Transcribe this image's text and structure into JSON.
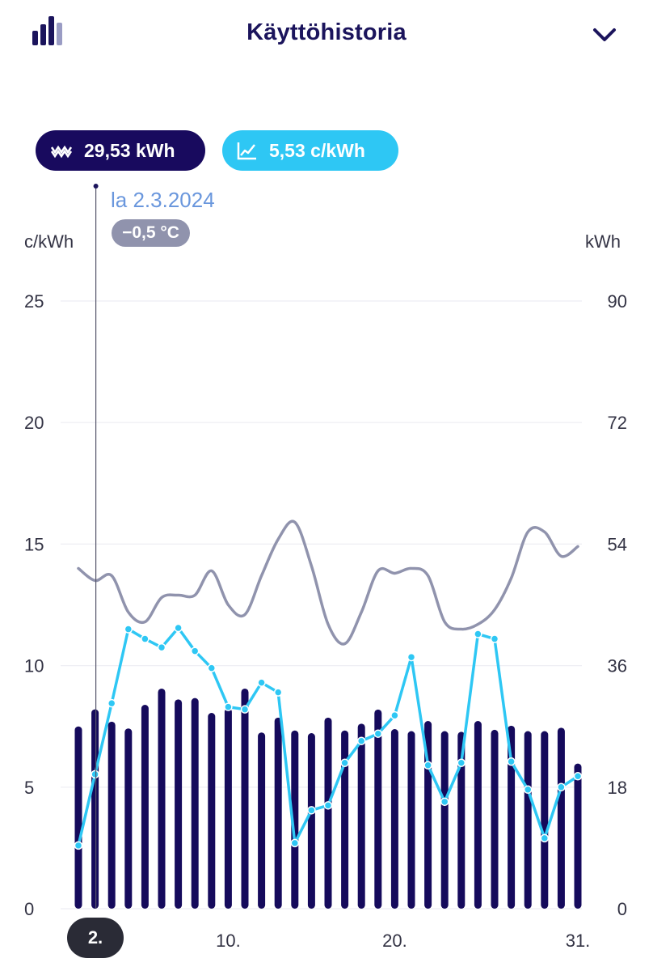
{
  "header": {
    "title": "Käyttöhistoria",
    "chart_icon": "bar-chart-icon",
    "menu_icon": "chevron-down-icon"
  },
  "legend": {
    "energy_value": "29,53 kWh",
    "energy_icon": "energy-waves-icon",
    "price_value": "5,53 c/kWh",
    "price_icon": "line-chart-icon"
  },
  "selection": {
    "date": "la 2.3.2024",
    "temperature": "−0,5 °C",
    "x_label": "2."
  },
  "colors": {
    "bar": "#150a5c",
    "price_line": "#2ec7f4",
    "temperature_line": "#9093ad",
    "grid": "#eeeef3"
  },
  "chart_data": {
    "type": "bar",
    "title": "",
    "x_ticks": [
      {
        "day": 10,
        "label": "10."
      },
      {
        "day": 20,
        "label": "20."
      },
      {
        "day": 31,
        "label": "31."
      }
    ],
    "left_axis": {
      "label": "c/kWh",
      "ylim": [
        0,
        25
      ],
      "ticks": [
        "0",
        "5",
        "10",
        "15",
        "20",
        "25"
      ]
    },
    "right_axis": {
      "label": "kWh",
      "ylim": [
        0,
        90
      ],
      "ticks": [
        "0",
        "18",
        "36",
        "54",
        "72",
        "90"
      ]
    },
    "grid": true,
    "days": [
      1,
      2,
      3,
      4,
      5,
      6,
      7,
      8,
      9,
      10,
      11,
      12,
      13,
      14,
      15,
      16,
      17,
      18,
      19,
      20,
      21,
      22,
      23,
      24,
      25,
      26,
      27,
      28,
      29,
      30,
      31
    ],
    "series": [
      {
        "kind": "bar",
        "axis": "right",
        "values": [
          27,
          29.53,
          27.7,
          26.7,
          30.2,
          32.6,
          31,
          31.2,
          29,
          29.7,
          32.6,
          26.1,
          28.3,
          26.4,
          26,
          28.3,
          26.4,
          27.4,
          29.5,
          26.6,
          26.3,
          27.8,
          26.3,
          26.2,
          27.8,
          26.5,
          27.1,
          26.3,
          26.3,
          26.8,
          21.5
        ]
      },
      {
        "kind": "line",
        "axis": "left",
        "values": [
          2.6,
          5.53,
          8.45,
          11.5,
          11.1,
          10.75,
          11.55,
          10.6,
          9.9,
          8.3,
          8.2,
          9.3,
          8.9,
          2.7,
          4.05,
          4.25,
          6.0,
          6.9,
          7.2,
          7.95,
          10.35,
          5.9,
          4.4,
          6.0,
          11.3,
          11.1,
          6.05,
          4.9,
          2.9,
          5.0,
          5.45
        ]
      },
      {
        "kind": "line",
        "axis": "left",
        "smooth": true,
        "values": [
          14.0,
          13.5,
          13.7,
          12.2,
          11.8,
          12.8,
          12.9,
          12.9,
          13.9,
          12.5,
          12.1,
          13.7,
          15.2,
          15.9,
          14.1,
          11.7,
          10.9,
          12.2,
          13.9,
          13.8,
          14.0,
          13.7,
          11.8,
          11.5,
          11.7,
          12.3,
          13.6,
          15.5,
          15.5,
          14.5,
          14.9
        ]
      }
    ],
    "selected_day": 2
  }
}
